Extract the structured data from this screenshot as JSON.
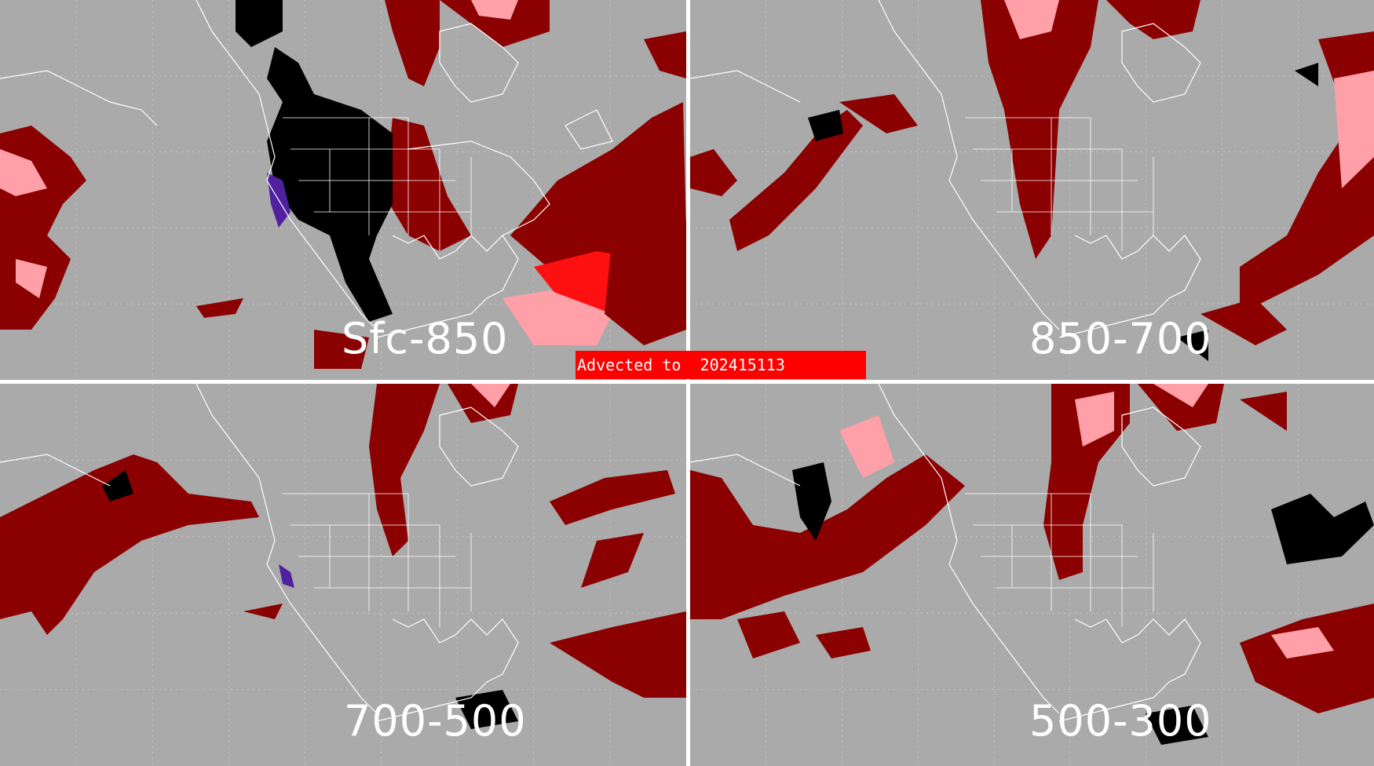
{
  "panels": [
    {
      "id": "sfc-850",
      "label": "Sfc-850"
    },
    {
      "id": "850-700",
      "label": "850-700"
    },
    {
      "id": "700-500",
      "label": "700-500"
    },
    {
      "id": "500-300",
      "label": "500-300"
    }
  ],
  "banner": {
    "prefix": "Advected to",
    "time": "202415113"
  },
  "colors": {
    "background": "#aaaaaa",
    "divider": "#ffffff",
    "map_lines": "#ffffff",
    "dark_red": "#8b0000",
    "pink": "#ffa0a8",
    "red": "#ff1010",
    "black": "#000000",
    "purple": "#5020a0",
    "banner": "#ff0000"
  }
}
